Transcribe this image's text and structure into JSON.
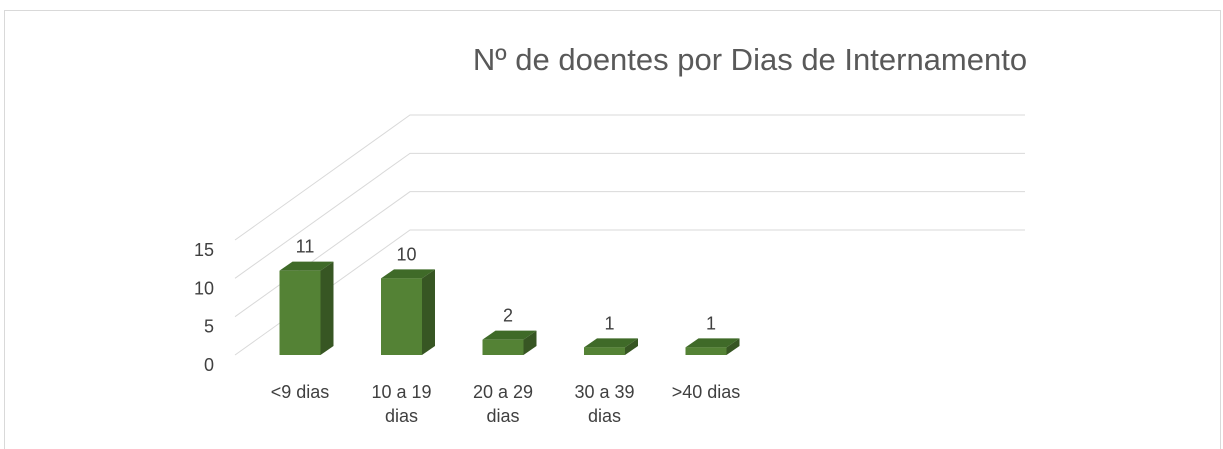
{
  "chart_data": {
    "type": "bar3d",
    "title": "Nº de doentes por Dias de Internamento",
    "categories": [
      "<9 dias",
      "10 a 19 dias",
      "20 a 29 dias",
      "30 a 39 dias",
      ">40 dias"
    ],
    "values": [
      11,
      10,
      2,
      1,
      1
    ],
    "color": "#548235",
    "ylim": [
      0,
      15
    ],
    "yticks": [
      0,
      5,
      10,
      15
    ],
    "grid": true
  }
}
